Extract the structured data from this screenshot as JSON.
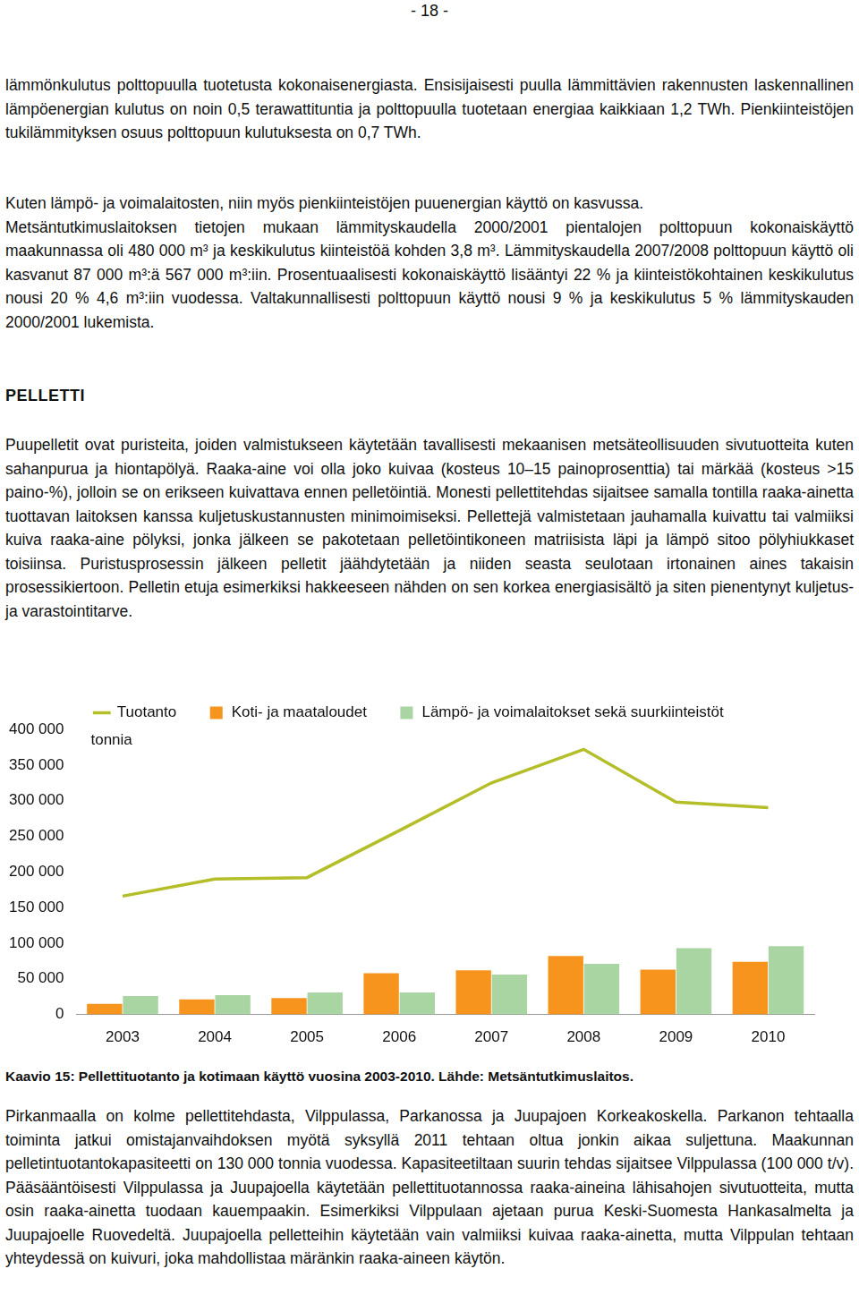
{
  "page_number": "- 18 -",
  "paragraphs_top": [
    "lämmönkulutus polttopuulla tuotetusta kokonaisenergiasta. Ensisijaisesti puulla lämmittävien rakennusten laskennallinen lämpöenergian kulutus on noin 0,5 terawattituntia ja polttopuulla tuotetaan energiaa kaikkiaan 1,2 TWh. Pienkiinteistöjen tukilämmityksen osuus polttopuun kulutuksesta on 0,7 TWh."
  ],
  "paragraphs_middle": [
    "Kuten lämpö- ja voimalaitosten, niin myös pienkiinteistöjen puuenergian käyttö on kasvussa.",
    "Metsäntutkimuslaitoksen tietojen mukaan lämmityskaudella 2000/2001 pientalojen polttopuun kokonaiskäyttö maakunnassa oli 480 000 m³ ja keskikulutus kiinteistöä kohden 3,8 m³. Lämmityskaudella 2007/2008 polttopuun käyttö oli kasvanut 87 000 m³:ä 567 000 m³:iin. Prosentuaalisesti kokonaiskäyttö lisääntyi 22 % ja kiinteistökohtainen keskikulutus nousi 20 % 4,6 m³:iin vuodessa. Valtakunnallisesti polttopuun käyttö nousi 9 % ja keskikulutus 5 % lämmityskauden 2000/2001 lukemista."
  ],
  "heading": "PELLETTI",
  "paragraphs_pelletti": [
    "Puupelletit ovat puristeita, joiden valmistukseen käytetään tavallisesti mekaanisen metsäteollisuuden sivutuotteita kuten sahanpurua ja hiontapölyä. Raaka-aine voi olla joko kuivaa (kosteus 10–15 painoprosenttia) tai märkää (kosteus >15 paino-%), jolloin se on erikseen kuivattava ennen pelletöintiä. Monesti pellettitehdas sijaitsee samalla tontilla raaka-ainetta tuottavan laitoksen kanssa kuljetuskustannusten minimoimiseksi. Pellettejä valmistetaan jauhamalla kuivattu tai valmiiksi kuiva raaka-aine pölyksi, jonka jälkeen se pakotetaan pelletöintikoneen matriisista läpi ja lämpö sitoo pölyhiukkaset toisiinsa. Puristusprosessin jälkeen pelletit jäähdytetään ja niiden seasta seulotaan irtonainen aines takaisin prosessikiertoon. Pelletin etuja esimerkiksi hakkeeseen nähden on sen korkea energiasisältö ja siten pienentynyt kuljetus- ja varastointitarve."
  ],
  "chart_data": {
    "type": "bar",
    "y_label": "tonnia",
    "categories": [
      "2003",
      "2004",
      "2005",
      "2006",
      "2007",
      "2008",
      "2009",
      "2010"
    ],
    "series": [
      {
        "name": "Koti- ja maataloudet",
        "type": "bar",
        "color": "#f7941d",
        "values": [
          15000,
          21000,
          23000,
          58000,
          62000,
          82000,
          63000,
          74000
        ]
      },
      {
        "name": "Lämpö- ja voimalaitokset sekä suurkiinteistöt",
        "type": "bar",
        "color": "#a9d5a2",
        "values": [
          26000,
          27000,
          31000,
          31000,
          56000,
          71000,
          93000,
          96000
        ]
      },
      {
        "name": "Tuotanto",
        "type": "line",
        "color": "#b3be28",
        "marker": "none",
        "line_style": "solid",
        "values": [
          166000,
          190000,
          192000,
          258000,
          325000,
          372000,
          298000,
          290000
        ]
      }
    ],
    "ylim": [
      0,
      400000
    ],
    "yticks": [
      0,
      {
        "value": 50000,
        "label": "50 000"
      },
      {
        "value": 100000,
        "label": "100 000"
      },
      {
        "value": 150000,
        "label": "150 000"
      },
      {
        "value": 200000,
        "label": "200 000"
      },
      {
        "value": 250000,
        "label": "250 000"
      },
      {
        "value": 300000,
        "label": "300 000"
      },
      {
        "value": 350000,
        "label": "350 000"
      },
      {
        "value": 400000,
        "label": "400 000"
      }
    ],
    "grid": false,
    "legend": "top"
  },
  "caption": "Kaavio 15: Pellettituotanto ja kotimaan käyttö vuosina 2003-2010. Lähde: Metsäntutkimuslaitos.",
  "paragraphs_bottom": [
    "Pirkanmaalla on kolme pellettitehdasta, Vilppulassa, Parkanossa ja Juupajoen Korkeakoskella. Parkanon tehtaalla toiminta jatkui omistajanvaihdoksen myötä syksyllä 2011 tehtaan oltua jonkin aikaa suljettuna. Maakunnan pelletintuotantokapasiteetti on 130 000 tonnia vuodessa. Kapasiteetiltaan suurin tehdas sijaitsee Vilppulassa (100 000 t/v). Pääsääntöisesti Vilppulassa ja Juupajoella käytetään pellettituotannossa raaka-aineina lähisahojen sivutuotteita, mutta osin raaka-ainetta tuodaan kauempaakin. Esimerkiksi Vilppulaan ajetaan purua Keski-Suomesta Hankasalmelta ja Juupajoelle Ruovedeltä. Juupajoella pelletteihin käytetään vain valmiiksi kuivaa raaka-ainetta, mutta Vilppulan tehtaan yhteydessä on kuivuri, joka mahdollistaa märänkin raaka-aineen käytön."
  ]
}
